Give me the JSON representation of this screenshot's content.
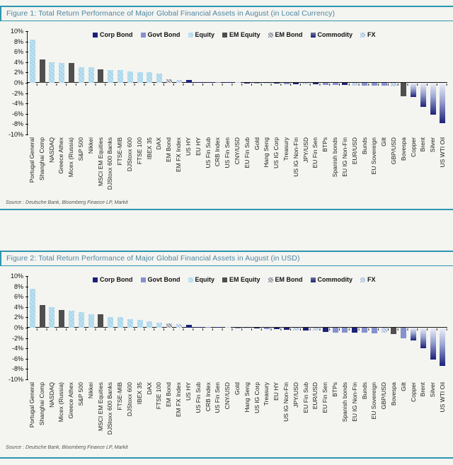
{
  "page": {
    "background_color": "#f4f4f1",
    "accent_teal": "#2e96ae",
    "title_text_color": "#4e87a0"
  },
  "colors": {
    "corp_bond": "#1b2178",
    "govt_bond": "#8691cf",
    "equity": "#a9d6e9",
    "em_equity": "#4f4f4f",
    "em_bond": "#868e96",
    "commodity_gradient_top": "#eff1f9",
    "commodity_gradient_bottom": "#1b2178",
    "fx": "#a3bcdb",
    "axis": "#1a1a1a"
  },
  "legend": [
    {
      "label": "Corp Bond",
      "key": "corp"
    },
    {
      "label": "Govt Bond",
      "key": "govt"
    },
    {
      "label": "Equity",
      "key": "equity"
    },
    {
      "label": "EM Equity",
      "key": "emequity"
    },
    {
      "label": "EM Bond",
      "key": "embond"
    },
    {
      "label": "Commodity",
      "key": "commodity"
    },
    {
      "label": "FX",
      "key": "fx"
    }
  ],
  "chart_data": [
    {
      "type": "bar",
      "title": "Figure 1: Total Return Performance of Major Global Financial Assets in August (in Local Currency)",
      "source": "Source : Deutsche Bank, Bloomberg Finance LP, Markit",
      "ylim": [
        -10,
        10
      ],
      "ytick_step": 2,
      "grid": false,
      "legend_position": "top",
      "x_label_rotation": 90,
      "yticks": [
        "10%",
        "8%",
        "6%",
        "4%",
        "2%",
        "0%",
        "-2%",
        "-4%",
        "-6%",
        "-8%",
        "-10%"
      ],
      "categories": [
        "Portugal General",
        "Shanghai Comp",
        "NASDAQ",
        "Greece Athex",
        "Micex (Russia)",
        "S&P 500",
        "Nikkei",
        "MSCI EM Equities",
        "DJStoxx 600 Banks",
        "FTSE-MIB",
        "DJStoxx 600",
        "FTSE 100",
        "IBEX 35",
        "DAX",
        "EM Bond",
        "EM FX Index",
        "US HY",
        "EU HY",
        "US Fin Sub",
        "CRB Index",
        "US Fin Sen",
        "CNY/USD",
        "EU Fin Sub",
        "Gold",
        "Hang Seng",
        "US IG Corp",
        "Treasury",
        "US IG Non-Fin",
        "JPY/USD",
        "EU Fin Sen",
        "BTPs",
        "Spanish bonds",
        "EU IG Non-Fin",
        "EUR/USD",
        "Bunds",
        "EU Sovereign",
        "Gilt",
        "GBP/USD",
        "Bovespa",
        "Copper",
        "Brent",
        "Silver",
        "US WTI Oil"
      ],
      "values": [
        8.3,
        4.5,
        4.0,
        3.9,
        3.8,
        3.0,
        3.0,
        2.6,
        2.5,
        2.4,
        2.2,
        2.1,
        2.0,
        1.8,
        0.7,
        0.6,
        0.6,
        0.2,
        0.2,
        0.1,
        0.1,
        0.1,
        -0.1,
        -0.2,
        -0.2,
        -0.2,
        -0.3,
        -0.3,
        -0.3,
        -0.3,
        -0.4,
        -0.4,
        -0.4,
        -0.5,
        -0.5,
        -0.6,
        -0.6,
        -0.7,
        -2.6,
        -2.8,
        -4.6,
        -6.2,
        -7.8
      ],
      "classes": [
        "equity",
        "emequity",
        "equity",
        "equity",
        "emequity",
        "equity",
        "equity",
        "emequity",
        "equity",
        "equity",
        "equity",
        "equity",
        "equity",
        "equity",
        "embond",
        "fx",
        "corp",
        "corp",
        "corp",
        "commodity",
        "corp",
        "fx",
        "corp",
        "commodity",
        "equity",
        "corp",
        "govt",
        "corp",
        "fx",
        "corp",
        "govt",
        "govt",
        "corp",
        "fx",
        "govt",
        "govt",
        "govt",
        "fx",
        "emequity",
        "commodity",
        "commodity",
        "commodity",
        "commodity"
      ]
    },
    {
      "type": "bar",
      "title": "Figure 2: Total Return Performance of Major Global Financial Assets in August (in USD)",
      "source": "Source : Deutsche Bank, Bloomberg Finance LP, Markit",
      "ylim": [
        -10,
        10
      ],
      "ytick_step": 2,
      "grid": false,
      "legend_position": "top",
      "x_label_rotation": 90,
      "yticks": [
        "10%",
        "8%",
        "6%",
        "4%",
        "2%",
        "0%",
        "-2%",
        "-4%",
        "-6%",
        "-8%",
        "-10%"
      ],
      "categories": [
        "Portugal General",
        "Shanghai Comp",
        "NASDAQ",
        "Micex (Russia)",
        "Greece Athex",
        "S&P 500",
        "Nikkei",
        "MSCI EM Equities",
        "DJStoxx 600 Banks",
        "FTSE-MIB",
        "DJStoxx 600",
        "IBEX 35",
        "DAX",
        "FTSE 100",
        "EM Bond",
        "EM FX Index",
        "US HY",
        "US Fin Sub",
        "CRB Index",
        "US Fin Sen",
        "CNY/USD",
        "Gold",
        "Hang Seng",
        "US IG Corp",
        "Treasury",
        "EU HY",
        "US IG Non-Fin",
        "JPY/USD",
        "EU Fin Sub",
        "EUR/USD",
        "EU Fin Sen",
        "BTPs",
        "Spanish bonds",
        "EU IG Non-Fin",
        "Bunds",
        "EU Sovereign",
        "GBP/USD",
        "Bovespa",
        "Gilt",
        "Copper",
        "Brent",
        "Silver",
        "US WTI Oil"
      ],
      "values": [
        7.5,
        4.4,
        4.0,
        3.4,
        3.3,
        3.0,
        2.6,
        2.6,
        2.0,
        2.0,
        1.6,
        1.5,
        1.3,
        1.0,
        0.8,
        0.7,
        0.6,
        0.2,
        0.1,
        0.1,
        0.0,
        -0.2,
        -0.2,
        -0.2,
        -0.3,
        -0.3,
        -0.4,
        -0.5,
        -0.6,
        -0.6,
        -0.8,
        -0.9,
        -1.0,
        -0.9,
        -1.0,
        -1.1,
        -0.9,
        -1.3,
        -2.0,
        -2.4,
        -4.0,
        -6.1,
        -7.4
      ],
      "classes": [
        "equity",
        "emequity",
        "equity",
        "emequity",
        "equity",
        "equity",
        "equity",
        "emequity",
        "equity",
        "equity",
        "equity",
        "equity",
        "equity",
        "equity",
        "embond",
        "fx",
        "corp",
        "corp",
        "commodity",
        "corp",
        "fx",
        "commodity",
        "equity",
        "corp",
        "govt",
        "corp",
        "corp",
        "fx",
        "corp",
        "fx",
        "corp",
        "govt",
        "govt",
        "corp",
        "govt",
        "govt",
        "fx",
        "emequity",
        "govt",
        "commodity",
        "commodity",
        "commodity",
        "commodity"
      ]
    }
  ]
}
